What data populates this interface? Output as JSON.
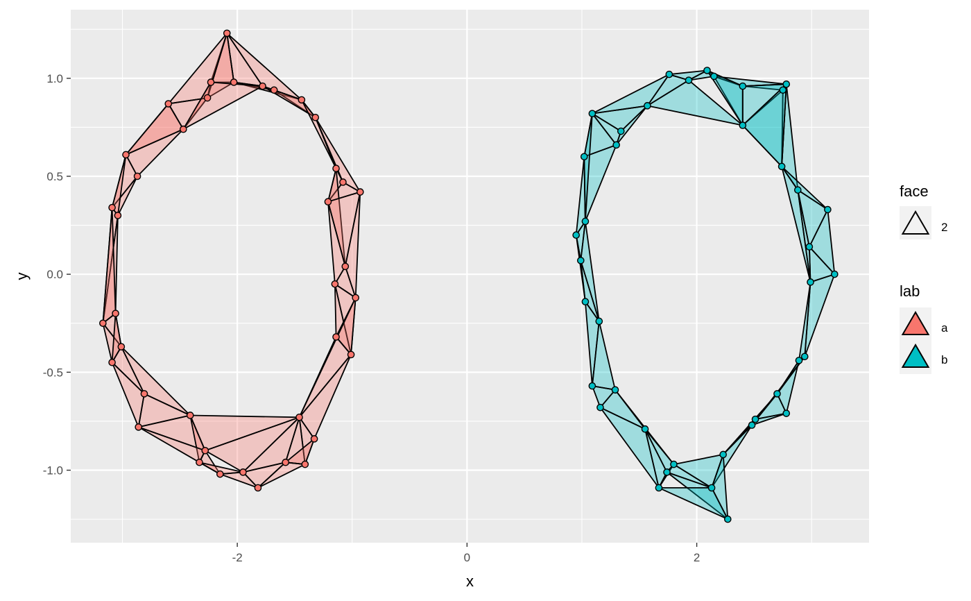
{
  "chart_data": {
    "type": "scatter",
    "subtype": "triangle mesh (ring-shaped point clouds triangulated into faces)",
    "title": "",
    "xlabel": "x",
    "ylabel": "y",
    "xlim": [
      -3.45,
      3.5
    ],
    "ylim": [
      -1.37,
      1.35
    ],
    "x_ticks": [
      -2,
      0,
      2
    ],
    "x_tick_labels": [
      "-2",
      "0",
      "2"
    ],
    "y_ticks": [
      -1.0,
      -0.5,
      0.0,
      0.5,
      1.0
    ],
    "y_tick_labels": [
      "-1.0",
      "-0.5",
      "0.0",
      "0.5",
      "1.0"
    ],
    "grid": true,
    "legend": {
      "position": "right",
      "groups": [
        {
          "title": "face",
          "entries": [
            {
              "label": "2",
              "shape": "triangle-outline"
            }
          ]
        },
        {
          "title": "lab",
          "entries": [
            {
              "label": "a",
              "color": "#F8766D"
            },
            {
              "label": "b",
              "color": "#00BFC4"
            }
          ]
        }
      ]
    },
    "series": [
      {
        "name": "a",
        "color": "#F8766D",
        "points": [
          [
            -2.09,
            1.23
          ],
          [
            -2.03,
            0.98
          ],
          [
            -2.23,
            0.98
          ],
          [
            -2.26,
            0.9
          ],
          [
            -2.6,
            0.87
          ],
          [
            -2.47,
            0.74
          ],
          [
            -1.78,
            0.96
          ],
          [
            -1.68,
            0.94
          ],
          [
            -1.44,
            0.89
          ],
          [
            -1.32,
            0.8
          ],
          [
            -2.97,
            0.61
          ],
          [
            -2.87,
            0.5
          ],
          [
            -3.09,
            0.34
          ],
          [
            -3.04,
            0.3
          ],
          [
            -1.14,
            0.54
          ],
          [
            -1.08,
            0.47
          ],
          [
            -1.21,
            0.37
          ],
          [
            -0.93,
            0.42
          ],
          [
            -1.06,
            0.04
          ],
          [
            -1.15,
            -0.05
          ],
          [
            -0.97,
            -0.12
          ],
          [
            -1.01,
            -0.41
          ],
          [
            -1.14,
            -0.32
          ],
          [
            -3.17,
            -0.25
          ],
          [
            -3.06,
            -0.2
          ],
          [
            -3.01,
            -0.37
          ],
          [
            -3.09,
            -0.45
          ],
          [
            -2.81,
            -0.61
          ],
          [
            -2.86,
            -0.78
          ],
          [
            -2.41,
            -0.72
          ],
          [
            -1.46,
            -0.73
          ],
          [
            -1.33,
            -0.84
          ],
          [
            -1.41,
            -0.97
          ],
          [
            -1.58,
            -0.96
          ],
          [
            -2.28,
            -0.9
          ],
          [
            -2.33,
            -0.96
          ],
          [
            -2.15,
            -1.02
          ],
          [
            -1.95,
            -1.01
          ],
          [
            -1.82,
            -1.09
          ]
        ],
        "faces": [
          [
            0,
            1,
            2
          ],
          [
            0,
            2,
            3
          ],
          [
            0,
            3,
            4
          ],
          [
            0,
            1,
            6
          ],
          [
            0,
            6,
            8
          ],
          [
            0,
            1,
            3
          ],
          [
            1,
            6,
            7
          ],
          [
            2,
            3,
            5
          ],
          [
            3,
            4,
            5
          ],
          [
            4,
            5,
            10
          ],
          [
            5,
            10,
            11
          ],
          [
            1,
            7,
            8
          ],
          [
            7,
            8,
            9
          ],
          [
            6,
            8,
            9
          ],
          [
            2,
            5,
            6
          ],
          [
            10,
            11,
            12
          ],
          [
            11,
            12,
            13
          ],
          [
            10,
            12,
            13
          ],
          [
            4,
            10,
            5
          ],
          [
            8,
            9,
            14
          ],
          [
            9,
            14,
            15
          ],
          [
            9,
            15,
            17
          ],
          [
            14,
            15,
            16
          ],
          [
            15,
            16,
            17
          ],
          [
            14,
            16,
            18
          ],
          [
            16,
            17,
            18
          ],
          [
            17,
            18,
            20
          ],
          [
            18,
            19,
            20
          ],
          [
            16,
            19,
            18
          ],
          [
            19,
            20,
            21
          ],
          [
            19,
            21,
            22
          ],
          [
            20,
            21,
            22
          ],
          [
            12,
            13,
            23
          ],
          [
            13,
            23,
            24
          ],
          [
            12,
            23,
            24
          ],
          [
            23,
            24,
            25
          ],
          [
            23,
            25,
            26
          ],
          [
            24,
            25,
            26
          ],
          [
            25,
            26,
            27
          ],
          [
            26,
            27,
            28
          ],
          [
            25,
            27,
            29
          ],
          [
            27,
            28,
            29
          ],
          [
            22,
            21,
            30
          ],
          [
            21,
            30,
            31
          ],
          [
            30,
            31,
            32
          ],
          [
            30,
            32,
            33
          ],
          [
            31,
            32,
            33
          ],
          [
            28,
            29,
            34
          ],
          [
            29,
            34,
            35
          ],
          [
            28,
            34,
            35
          ],
          [
            34,
            35,
            36
          ],
          [
            35,
            36,
            37
          ],
          [
            36,
            37,
            38
          ],
          [
            37,
            38,
            33
          ],
          [
            38,
            33,
            32
          ],
          [
            30,
            33,
            37
          ],
          [
            29,
            30,
            34
          ],
          [
            34,
            37,
            30
          ],
          [
            22,
            30,
            20
          ]
        ]
      },
      {
        "name": "b",
        "color": "#00BFC4",
        "points": [
          [
            1.76,
            1.02
          ],
          [
            1.93,
            0.99
          ],
          [
            2.09,
            1.04
          ],
          [
            2.15,
            1.01
          ],
          [
            2.4,
            0.96
          ],
          [
            2.75,
            0.94
          ],
          [
            2.78,
            0.97
          ],
          [
            2.4,
            0.76
          ],
          [
            1.57,
            0.86
          ],
          [
            1.09,
            0.82
          ],
          [
            1.34,
            0.73
          ],
          [
            1.3,
            0.66
          ],
          [
            1.02,
            0.6
          ],
          [
            2.74,
            0.55
          ],
          [
            2.88,
            0.43
          ],
          [
            3.14,
            0.33
          ],
          [
            1.03,
            0.27
          ],
          [
            0.95,
            0.2
          ],
          [
            0.99,
            0.07
          ],
          [
            2.98,
            0.14
          ],
          [
            3.2,
            0.0
          ],
          [
            2.99,
            -0.04
          ],
          [
            1.03,
            -0.14
          ],
          [
            1.15,
            -0.24
          ],
          [
            2.94,
            -0.42
          ],
          [
            2.89,
            -0.44
          ],
          [
            1.09,
            -0.57
          ],
          [
            1.29,
            -0.59
          ],
          [
            1.16,
            -0.68
          ],
          [
            2.7,
            -0.61
          ],
          [
            2.78,
            -0.71
          ],
          [
            2.51,
            -0.74
          ],
          [
            2.48,
            -0.77
          ],
          [
            1.55,
            -0.79
          ],
          [
            2.23,
            -0.92
          ],
          [
            1.8,
            -0.97
          ],
          [
            1.74,
            -1.01
          ],
          [
            1.67,
            -1.09
          ],
          [
            2.13,
            -1.09
          ],
          [
            2.27,
            -1.25
          ]
        ],
        "faces": [
          [
            0,
            1,
            2
          ],
          [
            1,
            2,
            3
          ],
          [
            2,
            3,
            4
          ],
          [
            3,
            4,
            6
          ],
          [
            4,
            5,
            6
          ],
          [
            3,
            4,
            7
          ],
          [
            4,
            6,
            7
          ],
          [
            0,
            1,
            8
          ],
          [
            1,
            7,
            8
          ],
          [
            8,
            9,
            10
          ],
          [
            9,
            10,
            11
          ],
          [
            9,
            11,
            12
          ],
          [
            8,
            10,
            11
          ],
          [
            0,
            8,
            9
          ],
          [
            5,
            6,
            13
          ],
          [
            6,
            13,
            14
          ],
          [
            5,
            13,
            7
          ],
          [
            13,
            14,
            15
          ],
          [
            14,
            15,
            19
          ],
          [
            15,
            19,
            20
          ],
          [
            19,
            20,
            21
          ],
          [
            12,
            16,
            17
          ],
          [
            16,
            17,
            18
          ],
          [
            11,
            12,
            16
          ],
          [
            17,
            18,
            22
          ],
          [
            18,
            22,
            23
          ],
          [
            21,
            20,
            24
          ],
          [
            21,
            24,
            25
          ],
          [
            14,
            19,
            21
          ],
          [
            22,
            23,
            26
          ],
          [
            23,
            26,
            27
          ],
          [
            26,
            27,
            28
          ],
          [
            24,
            25,
            29
          ],
          [
            25,
            29,
            30
          ],
          [
            29,
            30,
            31
          ],
          [
            30,
            31,
            32
          ],
          [
            28,
            27,
            33
          ],
          [
            27,
            33,
            35
          ],
          [
            33,
            35,
            36
          ],
          [
            33,
            36,
            37
          ],
          [
            35,
            36,
            37
          ],
          [
            32,
            34,
            38
          ],
          [
            34,
            38,
            39
          ],
          [
            36,
            38,
            39
          ],
          [
            35,
            36,
            38
          ],
          [
            34,
            35,
            38
          ],
          [
            31,
            32,
            34
          ],
          [
            29,
            31,
            34
          ],
          [
            37,
            38,
            39
          ],
          [
            28,
            33,
            37
          ],
          [
            6,
            7,
            13
          ],
          [
            13,
            14,
            21
          ],
          [
            24,
            29,
            32
          ],
          [
            2,
            4,
            7
          ],
          [
            9,
            12,
            16
          ],
          [
            16,
            18,
            23
          ]
        ]
      }
    ]
  }
}
